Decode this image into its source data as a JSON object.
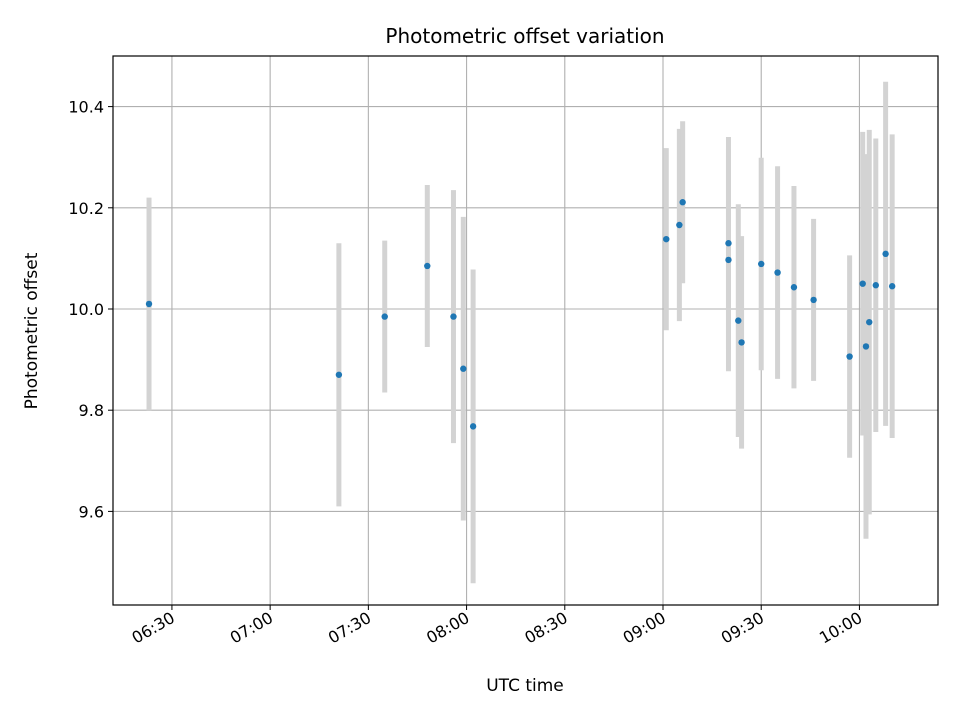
{
  "chart_data": {
    "type": "scatter",
    "title": "Photometric offset variation",
    "xlabel": "UTC time",
    "ylabel": "Photometric offset",
    "x_axis_kind": "time",
    "xlim": [
      "06:12",
      "10:24"
    ],
    "ylim": [
      9.415,
      10.5
    ],
    "x_ticks": [
      "06:30",
      "07:00",
      "07:30",
      "08:00",
      "08:30",
      "09:00",
      "09:30",
      "10:00"
    ],
    "y_ticks": [
      9.6,
      9.8,
      10.0,
      10.2,
      10.4
    ],
    "y_tick_labels": [
      "9.6",
      "9.8",
      "10.0",
      "10.2",
      "10.4"
    ],
    "grid": true,
    "point_color": "#1f77b4",
    "errorbar_color": "#d3d3d3",
    "series": [
      {
        "points": [
          {
            "x": "06:23",
            "y": 10.01,
            "yerr": 0.21
          },
          {
            "x": "07:21",
            "y": 9.87,
            "yerr": 0.26
          },
          {
            "x": "07:35",
            "y": 9.985,
            "yerr": 0.15
          },
          {
            "x": "07:48",
            "y": 10.085,
            "yerr": 0.16
          },
          {
            "x": "07:56",
            "y": 9.985,
            "yerr": 0.25
          },
          {
            "x": "07:59",
            "y": 9.882,
            "yerr": 0.3
          },
          {
            "x": "08:02",
            "y": 9.768,
            "yerr": 0.31
          },
          {
            "x": "09:01",
            "y": 10.138,
            "yerr": 0.18
          },
          {
            "x": "09:05",
            "y": 10.166,
            "yerr": 0.19
          },
          {
            "x": "09:06",
            "y": 10.211,
            "yerr": 0.16
          },
          {
            "x": "09:20",
            "y": 10.13,
            "yerr": 0.21
          },
          {
            "x": "09:20",
            "y": 10.097,
            "yerr": 0.22
          },
          {
            "x": "09:23",
            "y": 9.977,
            "yerr": 0.23
          },
          {
            "x": "09:24",
            "y": 9.934,
            "yerr": 0.21
          },
          {
            "x": "09:30",
            "y": 10.089,
            "yerr": 0.21
          },
          {
            "x": "09:35",
            "y": 10.072,
            "yerr": 0.21
          },
          {
            "x": "09:40",
            "y": 10.043,
            "yerr": 0.2
          },
          {
            "x": "09:46",
            "y": 10.018,
            "yerr": 0.16
          },
          {
            "x": "09:57",
            "y": 9.906,
            "yerr": 0.2
          },
          {
            "x": "10:01",
            "y": 10.05,
            "yerr": 0.3
          },
          {
            "x": "10:02",
            "y": 9.926,
            "yerr": 0.38
          },
          {
            "x": "10:03",
            "y": 9.974,
            "yerr": 0.38
          },
          {
            "x": "10:05",
            "y": 10.047,
            "yerr": 0.29
          },
          {
            "x": "10:08",
            "y": 10.109,
            "yerr": 0.34
          },
          {
            "x": "10:10",
            "y": 10.045,
            "yerr": 0.3
          }
        ]
      }
    ]
  }
}
